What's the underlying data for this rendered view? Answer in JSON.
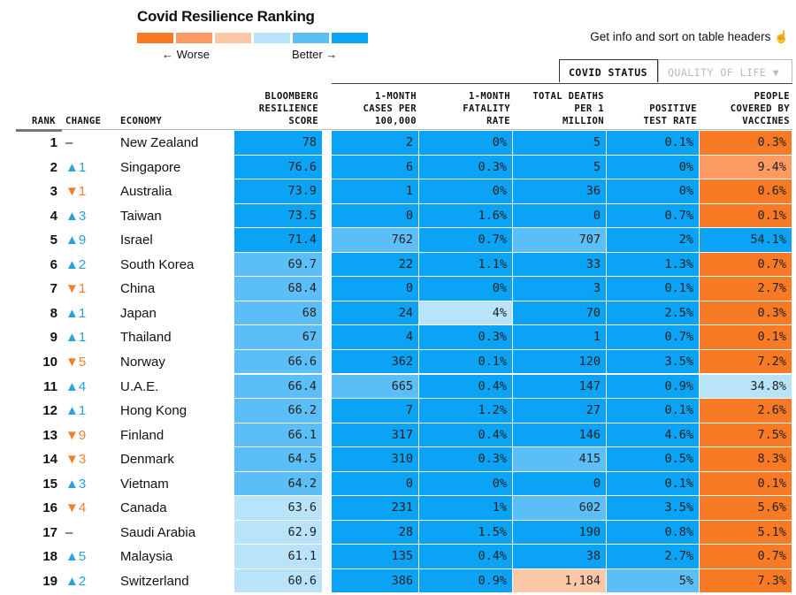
{
  "title": "Covid Resilience Ranking",
  "legend": {
    "worse_label": "← Worse",
    "better_label": "Better →",
    "scale_colors": [
      "#f97a24",
      "#fb9a62",
      "#fcc8a8",
      "#b8e3f9",
      "#5cbef6",
      "#0aa3f5"
    ]
  },
  "hint": "Get info and sort on table headers",
  "hint_icon": "pointer-hand-icon",
  "tabs": [
    {
      "label": "COVID STATUS",
      "active": true
    },
    {
      "label": "QUALITY OF LIFE ▼",
      "active": false
    }
  ],
  "colors": {
    "up": "#2aa0dc",
    "down": "#f0802c"
  },
  "headers": {
    "rank": "RANK",
    "change": "CHANGE",
    "economy": "ECONOMY",
    "score": "BLOOMBERG\nRESILIENCE\nSCORE",
    "cases": "1-MONTH\nCASES PER\n100,000",
    "fatality": "1-MONTH\nFATALITY\nRATE",
    "deaths": "TOTAL DEATHS\nPER 1\nMILLION",
    "positive": "POSITIVE\nTEST RATE",
    "vaccines": "PEOPLE\nCOVERED BY\nVACCINES"
  },
  "rows": [
    {
      "rank": "1",
      "change": "–",
      "dir": "none",
      "economy": "New Zealand",
      "values": [
        "78",
        "2",
        "0%",
        "5",
        "0.1%",
        "0.3%"
      ],
      "levels": [
        6,
        6,
        6,
        6,
        6,
        1
      ]
    },
    {
      "rank": "2",
      "change": "▲1",
      "dir": "up",
      "economy": "Singapore",
      "values": [
        "76.6",
        "6",
        "0.3%",
        "5",
        "0%",
        "9.4%"
      ],
      "levels": [
        6,
        6,
        6,
        6,
        6,
        2
      ]
    },
    {
      "rank": "3",
      "change": "▼1",
      "dir": "down",
      "economy": "Australia",
      "values": [
        "73.9",
        "1",
        "0%",
        "36",
        "0%",
        "0.6%"
      ],
      "levels": [
        6,
        6,
        6,
        6,
        6,
        1
      ]
    },
    {
      "rank": "4",
      "change": "▲3",
      "dir": "up",
      "economy": "Taiwan",
      "values": [
        "73.5",
        "0",
        "1.6%",
        "0",
        "0.7%",
        "0.1%"
      ],
      "levels": [
        6,
        6,
        6,
        6,
        6,
        1
      ]
    },
    {
      "rank": "5",
      "change": "▲9",
      "dir": "up",
      "economy": "Israel",
      "values": [
        "71.4",
        "762",
        "0.7%",
        "707",
        "2%",
        "54.1%"
      ],
      "levels": [
        6,
        5,
        6,
        5,
        6,
        6
      ]
    },
    {
      "rank": "6",
      "change": "▲2",
      "dir": "up",
      "economy": "South Korea",
      "values": [
        "69.7",
        "22",
        "1.1%",
        "33",
        "1.3%",
        "0.7%"
      ],
      "levels": [
        5,
        6,
        6,
        6,
        6,
        1
      ]
    },
    {
      "rank": "7",
      "change": "▼1",
      "dir": "down",
      "economy": "China",
      "values": [
        "68.4",
        "0",
        "0%",
        "3",
        "0.1%",
        "2.7%"
      ],
      "levels": [
        5,
        6,
        6,
        6,
        6,
        1
      ]
    },
    {
      "rank": "8",
      "change": "▲1",
      "dir": "up",
      "economy": "Japan",
      "values": [
        "68",
        "24",
        "4%",
        "70",
        "2.5%",
        "0.3%"
      ],
      "levels": [
        5,
        6,
        4,
        6,
        6,
        1
      ]
    },
    {
      "rank": "9",
      "change": "▲1",
      "dir": "up",
      "economy": "Thailand",
      "values": [
        "67",
        "4",
        "0.3%",
        "1",
        "0.7%",
        "0.1%"
      ],
      "levels": [
        5,
        6,
        6,
        6,
        6,
        1
      ]
    },
    {
      "rank": "10",
      "change": "▼5",
      "dir": "down",
      "economy": "Norway",
      "values": [
        "66.6",
        "362",
        "0.1%",
        "120",
        "3.5%",
        "7.2%"
      ],
      "levels": [
        5,
        6,
        6,
        6,
        6,
        1
      ]
    },
    {
      "rank": "11",
      "change": "▲4",
      "dir": "up",
      "economy": "U.A.E.",
      "values": [
        "66.4",
        "665",
        "0.4%",
        "147",
        "0.9%",
        "34.8%"
      ],
      "levels": [
        5,
        5,
        6,
        6,
        6,
        4
      ]
    },
    {
      "rank": "12",
      "change": "▲1",
      "dir": "up",
      "economy": "Hong Kong",
      "values": [
        "66.2",
        "7",
        "1.2%",
        "27",
        "0.1%",
        "2.6%"
      ],
      "levels": [
        5,
        6,
        6,
        6,
        6,
        1
      ]
    },
    {
      "rank": "13",
      "change": "▼9",
      "dir": "down",
      "economy": "Finland",
      "values": [
        "66.1",
        "317",
        "0.4%",
        "146",
        "4.6%",
        "7.5%"
      ],
      "levels": [
        5,
        6,
        6,
        6,
        6,
        1
      ]
    },
    {
      "rank": "14",
      "change": "▼3",
      "dir": "down",
      "economy": "Denmark",
      "values": [
        "64.5",
        "310",
        "0.3%",
        "415",
        "0.5%",
        "8.3%"
      ],
      "levels": [
        5,
        6,
        6,
        5,
        6,
        1
      ]
    },
    {
      "rank": "15",
      "change": "▲3",
      "dir": "up",
      "economy": "Vietnam",
      "values": [
        "64.2",
        "0",
        "0%",
        "0",
        "0.1%",
        "0.1%"
      ],
      "levels": [
        5,
        6,
        6,
        6,
        6,
        1
      ]
    },
    {
      "rank": "16",
      "change": "▼4",
      "dir": "down",
      "economy": "Canada",
      "values": [
        "63.6",
        "231",
        "1%",
        "602",
        "3.5%",
        "5.6%"
      ],
      "levels": [
        4,
        6,
        6,
        5,
        6,
        1
      ]
    },
    {
      "rank": "17",
      "change": "–",
      "dir": "none",
      "economy": "Saudi Arabia",
      "values": [
        "62.9",
        "28",
        "1.5%",
        "190",
        "0.8%",
        "5.1%"
      ],
      "levels": [
        4,
        6,
        6,
        6,
        6,
        1
      ]
    },
    {
      "rank": "18",
      "change": "▲5",
      "dir": "up",
      "economy": "Malaysia",
      "values": [
        "61.1",
        "135",
        "0.4%",
        "38",
        "2.7%",
        "0.7%"
      ],
      "levels": [
        4,
        6,
        6,
        6,
        6,
        1
      ]
    },
    {
      "rank": "19",
      "change": "▲2",
      "dir": "up",
      "economy": "Switzerland",
      "values": [
        "60.6",
        "386",
        "0.9%",
        "1,184",
        "5%",
        "7.3%"
      ],
      "levels": [
        4,
        6,
        6,
        3,
        5,
        1
      ]
    }
  ]
}
